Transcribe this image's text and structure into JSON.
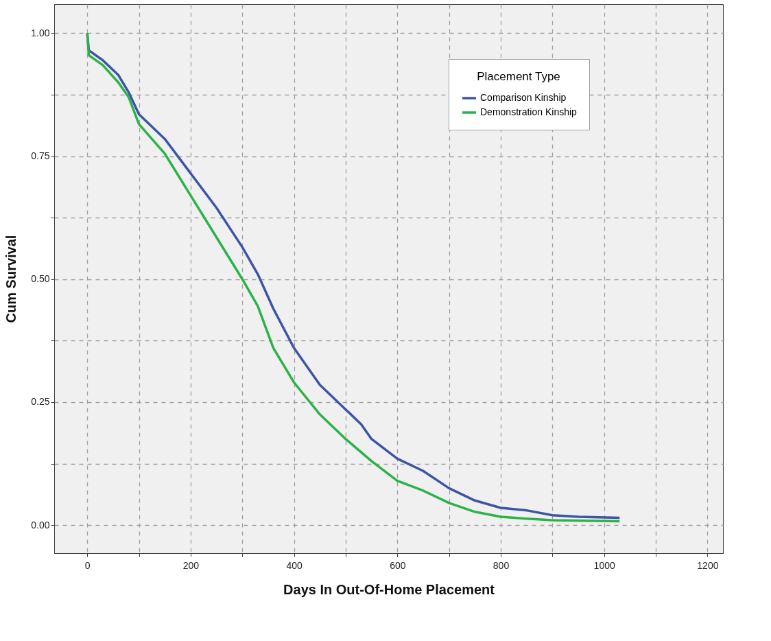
{
  "chart_data": {
    "type": "line",
    "xlabel": "Days In Out-Of-Home Placement",
    "ylabel": "Cum Survival",
    "legend_title": "Placement Type",
    "legend": "top right",
    "grid": true,
    "line_style": "solid",
    "marker": "none",
    "xlim": [
      -64,
      1230
    ],
    "ylim": [
      -0.057,
      1.059
    ],
    "xticks": [
      0,
      {
        "value": 100,
        "label": null
      },
      200,
      {
        "value": 300,
        "label": null
      },
      400,
      {
        "value": 500,
        "label": null
      },
      600,
      {
        "value": 700,
        "label": null
      },
      800,
      {
        "value": 900,
        "label": null
      },
      1000,
      {
        "value": 1100,
        "label": null
      },
      1200
    ],
    "yticks": [
      {
        "value": 0,
        "label": "0.00"
      },
      {
        "value": 0.125,
        "label": null
      },
      {
        "value": 0.25,
        "label": "0.25"
      },
      {
        "value": 0.375,
        "label": null
      },
      {
        "value": 0.5,
        "label": "0.50"
      },
      {
        "value": 0.625,
        "label": null
      },
      {
        "value": 0.75,
        "label": "0.75"
      },
      {
        "value": 0.875,
        "label": null
      },
      {
        "value": 1,
        "label": "1.00"
      }
    ],
    "series": [
      {
        "name": "Comparison Kinship",
        "color": "#3c55a5",
        "x": [
          0,
          3,
          30,
          60,
          80,
          100,
          150,
          200,
          250,
          300,
          330,
          360,
          400,
          450,
          500,
          530,
          550,
          600,
          650,
          700,
          750,
          800,
          850,
          900,
          950,
          1030
        ],
        "values": [
          1.0,
          0.965,
          0.945,
          0.915,
          0.88,
          0.835,
          0.785,
          0.715,
          0.645,
          0.565,
          0.51,
          0.44,
          0.36,
          0.285,
          0.235,
          0.205,
          0.175,
          0.135,
          0.11,
          0.075,
          0.05,
          0.035,
          0.03,
          0.02,
          0.017,
          0.015
        ]
      },
      {
        "name": "Demonstration Kinship",
        "color": "#2db24a",
        "x": [
          0,
          3,
          30,
          60,
          80,
          100,
          150,
          200,
          250,
          300,
          330,
          360,
          400,
          450,
          500,
          550,
          600,
          650,
          700,
          750,
          800,
          850,
          900,
          1030
        ],
        "values": [
          1.0,
          0.955,
          0.935,
          0.9,
          0.87,
          0.815,
          0.755,
          0.67,
          0.585,
          0.5,
          0.445,
          0.36,
          0.29,
          0.225,
          0.175,
          0.13,
          0.09,
          0.07,
          0.045,
          0.027,
          0.017,
          0.013,
          0.01,
          0.008
        ]
      }
    ]
  }
}
